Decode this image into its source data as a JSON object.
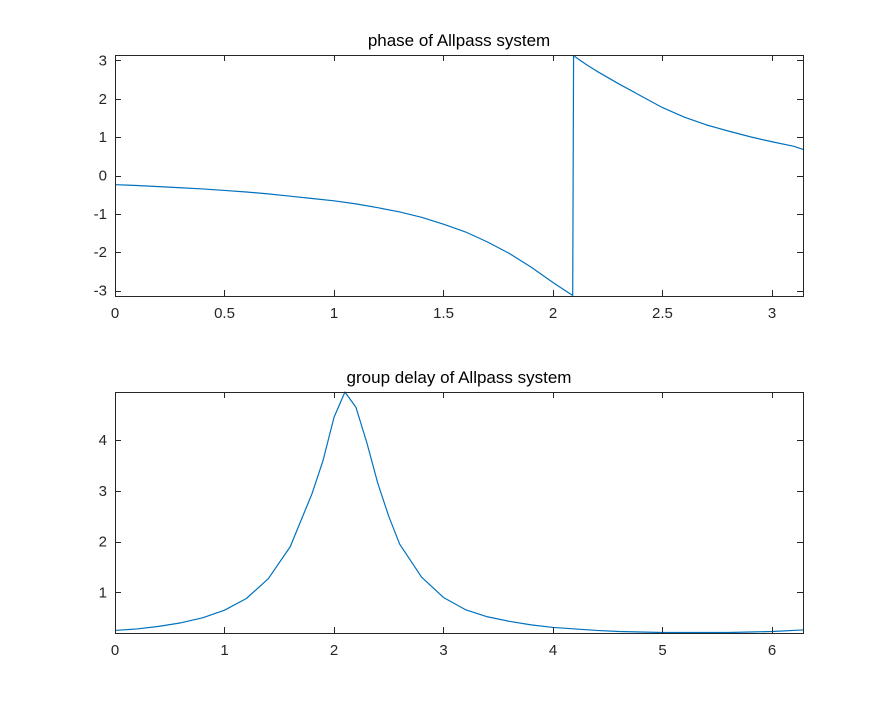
{
  "chart_data": [
    {
      "type": "line",
      "title": "phase of Allpass system",
      "xlabel": "",
      "ylabel": "",
      "xlim": [
        0,
        3.1416
      ],
      "ylim": [
        -3.1416,
        3.1416
      ],
      "xticks": [
        0,
        0.5,
        1,
        1.5,
        2,
        2.5,
        3
      ],
      "xtick_labels": [
        "0",
        "0.5",
        "1",
        "1.5",
        "2",
        "2.5",
        "3"
      ],
      "yticks": [
        -3,
        -2,
        -1,
        0,
        1,
        2,
        3
      ],
      "ytick_labels": [
        "-3",
        "-2",
        "-1",
        "0",
        "1",
        "2",
        "3"
      ],
      "grid": false,
      "color": "#0072BD",
      "series": [
        {
          "x": [
            0,
            0.1,
            0.2,
            0.3,
            0.4,
            0.5,
            0.6,
            0.7,
            0.8,
            0.9,
            1.0,
            1.1,
            1.2,
            1.3,
            1.4,
            1.5,
            1.6,
            1.7,
            1.8,
            1.9,
            2.0,
            2.05,
            2.09,
            2.094,
            2.1,
            2.15,
            2.2,
            2.3,
            2.4,
            2.5,
            2.6,
            2.7,
            2.8,
            2.9,
            3.0,
            3.1,
            3.1416
          ],
          "y": [
            -0.24,
            -0.26,
            -0.29,
            -0.32,
            -0.35,
            -0.39,
            -0.43,
            -0.48,
            -0.54,
            -0.6,
            -0.66,
            -0.74,
            -0.84,
            -0.95,
            -1.09,
            -1.27,
            -1.47,
            -1.73,
            -2.03,
            -2.39,
            -2.79,
            -2.98,
            -3.13,
            3.13,
            3.1,
            2.9,
            2.72,
            2.39,
            2.08,
            1.77,
            1.52,
            1.32,
            1.16,
            1.01,
            0.88,
            0.76,
            0.68
          ]
        }
      ]
    },
    {
      "type": "line",
      "title": "group delay of Allpass system",
      "xlabel": "",
      "ylabel": "",
      "xlim": [
        0,
        6.2832
      ],
      "ylim": [
        0.2,
        4.95
      ],
      "xticks": [
        0,
        1,
        2,
        3,
        4,
        5,
        6
      ],
      "xtick_labels": [
        "0",
        "1",
        "2",
        "3",
        "4",
        "5",
        "6"
      ],
      "yticks": [
        1,
        2,
        3,
        4
      ],
      "ytick_labels": [
        "1",
        "2",
        "3",
        "4"
      ],
      "grid": false,
      "color": "#0072BD",
      "series": [
        {
          "x": [
            0,
            0.2,
            0.4,
            0.6,
            0.8,
            1.0,
            1.2,
            1.4,
            1.6,
            1.8,
            1.9,
            2.0,
            2.1,
            2.2,
            2.3,
            2.4,
            2.5,
            2.6,
            2.8,
            3.0,
            3.2,
            3.4,
            3.6,
            3.8,
            4.0,
            4.2,
            4.4,
            4.6,
            4.8,
            5.0,
            5.2,
            5.4,
            5.6,
            5.8,
            6.0,
            6.2832
          ],
          "y": [
            0.25,
            0.28,
            0.33,
            0.4,
            0.5,
            0.65,
            0.88,
            1.27,
            1.9,
            2.95,
            3.6,
            4.45,
            4.95,
            4.65,
            3.95,
            3.15,
            2.5,
            1.95,
            1.3,
            0.9,
            0.66,
            0.52,
            0.43,
            0.36,
            0.31,
            0.28,
            0.25,
            0.23,
            0.22,
            0.21,
            0.21,
            0.21,
            0.21,
            0.22,
            0.23,
            0.26
          ]
        }
      ]
    }
  ]
}
